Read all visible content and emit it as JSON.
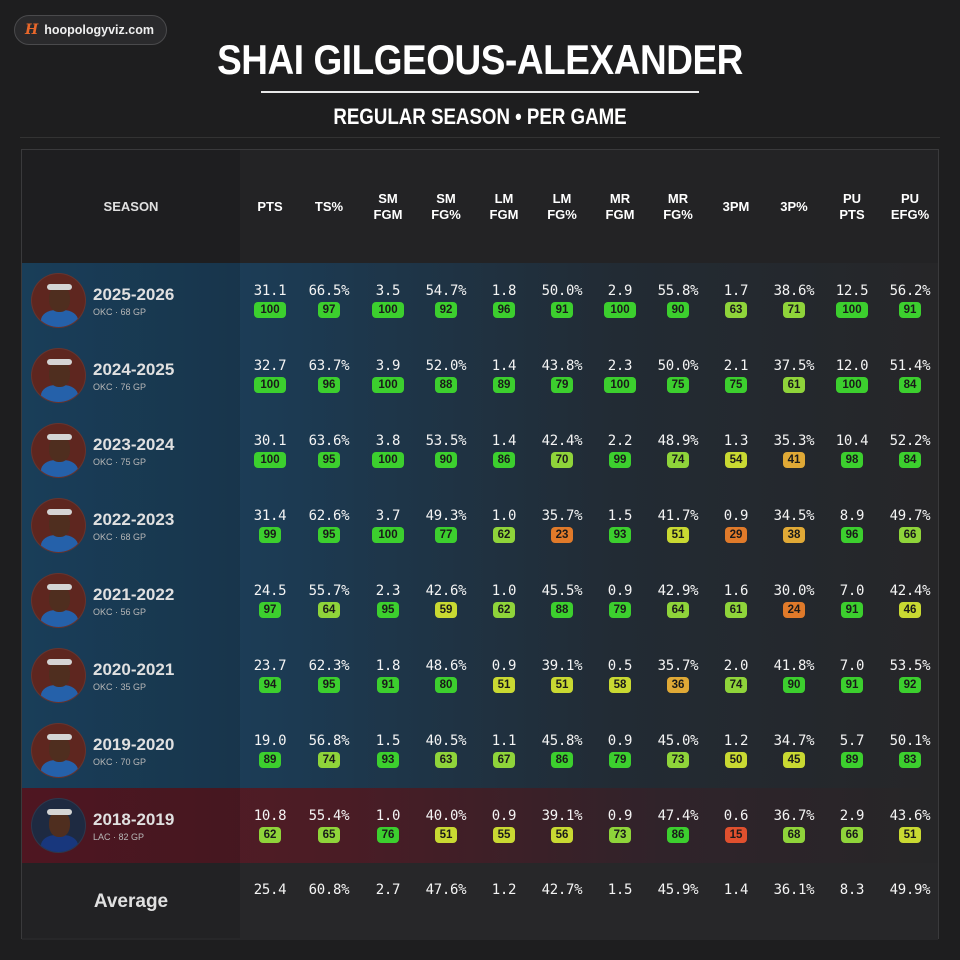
{
  "brand": {
    "logo": "H",
    "text": "hoopologyviz.com"
  },
  "title": "SHAI GILGEOUS-ALEXANDER",
  "subtitle": "REGULAR SEASON • PER GAME",
  "colors": {
    "okc": "#1d4766",
    "lac": "#5a1a26",
    "pill_green": "#3ccf2e",
    "pill_yellow": "#c9d932",
    "pill_orange": "#e07a2a",
    "pill_red": "#e0502e"
  },
  "headers": [
    "SEASON",
    "PTS",
    "TS%",
    "SM\nFGM",
    "SM\nFG%",
    "LM\nFGM",
    "LM\nFG%",
    "MR\nFGM",
    "MR\nFG%",
    "3PM",
    "3P%",
    "PU\nPTS",
    "PU\nEFG%"
  ],
  "rows": [
    {
      "season": "2025-2026",
      "sub": "OKC · 68 GP",
      "team": "okc",
      "values": [
        "31.1",
        "66.5%",
        "3.5",
        "54.7%",
        "1.8",
        "50.0%",
        "2.9",
        "55.8%",
        "1.7",
        "38.6%",
        "12.5",
        "56.2%"
      ],
      "pct": [
        100,
        97,
        100,
        92,
        96,
        91,
        100,
        90,
        63,
        71,
        100,
        91
      ]
    },
    {
      "season": "2024-2025",
      "sub": "OKC · 76 GP",
      "team": "okc",
      "values": [
        "32.7",
        "63.7%",
        "3.9",
        "52.0%",
        "1.4",
        "43.8%",
        "2.3",
        "50.0%",
        "2.1",
        "37.5%",
        "12.0",
        "51.4%"
      ],
      "pct": [
        100,
        96,
        100,
        88,
        89,
        79,
        100,
        75,
        75,
        61,
        100,
        84
      ]
    },
    {
      "season": "2023-2024",
      "sub": "OKC · 75 GP",
      "team": "okc",
      "values": [
        "30.1",
        "63.6%",
        "3.8",
        "53.5%",
        "1.4",
        "42.4%",
        "2.2",
        "48.9%",
        "1.3",
        "35.3%",
        "10.4",
        "52.2%"
      ],
      "pct": [
        100,
        95,
        100,
        90,
        86,
        70,
        99,
        74,
        54,
        41,
        98,
        84
      ]
    },
    {
      "season": "2022-2023",
      "sub": "OKC · 68 GP",
      "team": "okc",
      "values": [
        "31.4",
        "62.6%",
        "3.7",
        "49.3%",
        "1.0",
        "35.7%",
        "1.5",
        "41.7%",
        "0.9",
        "34.5%",
        "8.9",
        "49.7%"
      ],
      "pct": [
        99,
        95,
        100,
        77,
        62,
        23,
        93,
        51,
        29,
        38,
        96,
        66
      ]
    },
    {
      "season": "2021-2022",
      "sub": "OKC · 56 GP",
      "team": "okc",
      "values": [
        "24.5",
        "55.7%",
        "2.3",
        "42.6%",
        "1.0",
        "45.5%",
        "0.9",
        "42.9%",
        "1.6",
        "30.0%",
        "7.0",
        "42.4%"
      ],
      "pct": [
        97,
        64,
        95,
        59,
        62,
        88,
        79,
        64,
        61,
        24,
        91,
        46
      ]
    },
    {
      "season": "2020-2021",
      "sub": "OKC · 35 GP",
      "team": "okc",
      "values": [
        "23.7",
        "62.3%",
        "1.8",
        "48.6%",
        "0.9",
        "39.1%",
        "0.5",
        "35.7%",
        "2.0",
        "41.8%",
        "7.0",
        "53.5%"
      ],
      "pct": [
        94,
        95,
        91,
        80,
        51,
        51,
        58,
        36,
        74,
        90,
        91,
        92
      ]
    },
    {
      "season": "2019-2020",
      "sub": "OKC · 70 GP",
      "team": "okc",
      "values": [
        "19.0",
        "56.8%",
        "1.5",
        "40.5%",
        "1.1",
        "45.8%",
        "0.9",
        "45.0%",
        "1.2",
        "34.7%",
        "5.7",
        "50.1%"
      ],
      "pct": [
        89,
        74,
        93,
        63,
        67,
        86,
        79,
        73,
        50,
        45,
        89,
        83
      ]
    },
    {
      "season": "2018-2019",
      "sub": "LAC · 82 GP",
      "team": "lac",
      "values": [
        "10.8",
        "55.4%",
        "1.0",
        "40.0%",
        "0.9",
        "39.1%",
        "0.9",
        "47.4%",
        "0.6",
        "36.7%",
        "2.9",
        "43.6%"
      ],
      "pct": [
        62,
        65,
        76,
        51,
        55,
        56,
        73,
        86,
        15,
        68,
        66,
        51
      ]
    }
  ],
  "average": {
    "label": "Average",
    "values": [
      "25.4",
      "60.8%",
      "2.7",
      "47.6%",
      "1.2",
      "42.7%",
      "1.5",
      "45.9%",
      "1.4",
      "36.1%",
      "8.3",
      "49.9%"
    ]
  }
}
